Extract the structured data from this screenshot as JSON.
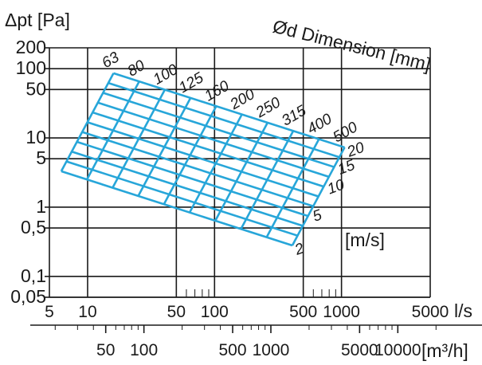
{
  "chart_data": {
    "type": "nomogram",
    "ylabel": "Δpt [Pa]",
    "xlabel": "l/s",
    "x2label": "[m³/h]",
    "diameter_title": "Ød Dimension [mm]",
    "velocity_unit": "[m/s]",
    "xscale": "log",
    "yscale": "log",
    "xlim": [
      5,
      5000
    ],
    "ylim": [
      0.05,
      200
    ],
    "x_ticks": [
      5,
      10,
      50,
      100,
      500,
      1000,
      5000
    ],
    "x_tick_labels": [
      "5",
      "10",
      "50",
      "100",
      "500",
      "1000",
      "5000"
    ],
    "x2_ticks": [
      50,
      100,
      500,
      1000,
      5000,
      10000
    ],
    "x2_tick_labels": [
      "50",
      "100",
      "500",
      "1000",
      "5000",
      "10000"
    ],
    "y_ticks": [
      0.05,
      0.1,
      0.5,
      1,
      5,
      10,
      50,
      100,
      200
    ],
    "y_tick_labels": [
      "0,05",
      "0,1",
      "0,5",
      "1",
      "5",
      "10",
      "50",
      "100",
      "200"
    ],
    "diameters_mm": [
      "63",
      "80",
      "100",
      "125",
      "160",
      "200",
      "250",
      "315",
      "400",
      "500"
    ],
    "velocities_ms": [
      "2",
      "5",
      "10",
      "15",
      "20"
    ],
    "grid": true
  },
  "colors": {
    "nomogram": "#27a6d9",
    "grid": "#1a1a1a"
  }
}
